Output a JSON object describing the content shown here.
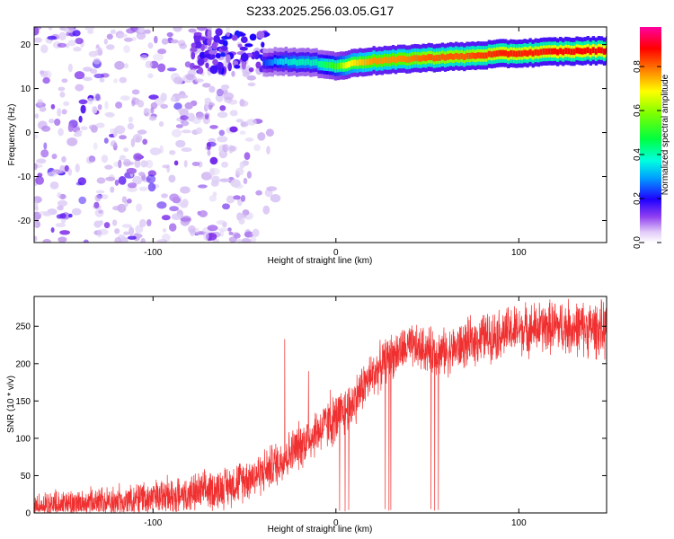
{
  "title": "S233.2025.256.03.05.G17",
  "chart_data": [
    {
      "type": "heatmap",
      "title": "S233.2025.256.03.05.G17",
      "xlabel": "Height of straight line (km)",
      "ylabel": "Frequency (Hz)",
      "xlim": [
        -165,
        148
      ],
      "ylim": [
        -25,
        24
      ],
      "xticks": [
        -100,
        0,
        100
      ],
      "xtick_labels": [
        "-100",
        "0",
        "100"
      ],
      "yticks": [
        -20,
        -10,
        0,
        10,
        20
      ],
      "ytick_labels": [
        "-20",
        "-10",
        "0",
        "10",
        "20"
      ],
      "colorbar": {
        "label": "Normalized spectral amplitude",
        "range": [
          0.0,
          0.98
        ],
        "ticks": [
          0.0,
          0.2,
          0.4,
          0.6,
          0.8
        ],
        "tick_labels": [
          "0.0",
          "0.2",
          "0.4",
          "0.6",
          "0.8"
        ],
        "colormap": [
          "#e8e0f8",
          "#c8a8f0",
          "#8030e8",
          "#2000ff",
          "#00ccff",
          "#00ff88",
          "#40ff00",
          "#ffff00",
          "#ff8000",
          "#ff0000",
          "#ff00a0"
        ]
      },
      "ridge": {
        "x": [
          -40,
          -30,
          -20,
          -12,
          -5,
          0,
          5,
          12,
          20,
          30,
          40,
          50,
          60,
          70,
          80,
          90,
          100,
          110,
          120,
          130,
          140,
          148
        ],
        "y": [
          16.0,
          16.2,
          16.0,
          15.8,
          15.5,
          15.0,
          15.4,
          16.0,
          16.3,
          16.5,
          16.8,
          17.0,
          17.2,
          17.3,
          17.6,
          17.9,
          18.0,
          18.2,
          18.4,
          18.5,
          18.6,
          18.6
        ],
        "amplitude": [
          0.3,
          0.4,
          0.45,
          0.45,
          0.55,
          0.6,
          0.7,
          0.75,
          0.8,
          0.8,
          0.82,
          0.85,
          0.85,
          0.85,
          0.88,
          0.9,
          0.9,
          0.9,
          0.92,
          0.92,
          0.93,
          0.93
        ]
      },
      "noise_region": {
        "x_range": [
          -165,
          -45
        ],
        "y_range": [
          -25,
          24
        ],
        "amplitude_range": [
          0.02,
          0.3
        ]
      }
    },
    {
      "type": "line",
      "title": "",
      "xlabel": "Height of straight line (km)",
      "ylabel": "SNR (10 * v/v)",
      "xlim": [
        -165,
        148
      ],
      "ylim": [
        0,
        290
      ],
      "xticks": [
        -100,
        0,
        100
      ],
      "xtick_labels": [
        "-100",
        "0",
        "100"
      ],
      "yticks": [
        0,
        50,
        100,
        150,
        200,
        250
      ],
      "ytick_labels": [
        "0",
        "50",
        "100",
        "150",
        "200",
        "250"
      ],
      "color": "#f03030",
      "trend": {
        "x": [
          -165,
          -140,
          -120,
          -100,
          -80,
          -60,
          -40,
          -30,
          -20,
          -10,
          0,
          10,
          15,
          20,
          30,
          40,
          60,
          80,
          100,
          120,
          148
        ],
        "y": [
          10,
          12,
          15,
          20,
          25,
          35,
          55,
          70,
          90,
          110,
          125,
          150,
          170,
          185,
          210,
          222,
          215,
          235,
          245,
          250,
          245
        ]
      },
      "spread": {
        "x": [
          -165,
          -40,
          0,
          40,
          148
        ],
        "y": [
          22,
          35,
          40,
          35,
          45
        ]
      },
      "spikes": [
        {
          "x": -28,
          "y": 233
        },
        {
          "x": -15,
          "y": 190
        },
        {
          "x": -3,
          "y": 165
        }
      ],
      "dips": [
        {
          "x": 2,
          "y": 3
        },
        {
          "x": 5,
          "y": 2
        },
        {
          "x": 7,
          "y": 4
        },
        {
          "x": 27,
          "y": 5
        },
        {
          "x": 29,
          "y": 3
        },
        {
          "x": 30,
          "y": 4
        },
        {
          "x": 52,
          "y": 5
        },
        {
          "x": 54,
          "y": 3
        },
        {
          "x": 56,
          "y": 4
        }
      ]
    }
  ]
}
